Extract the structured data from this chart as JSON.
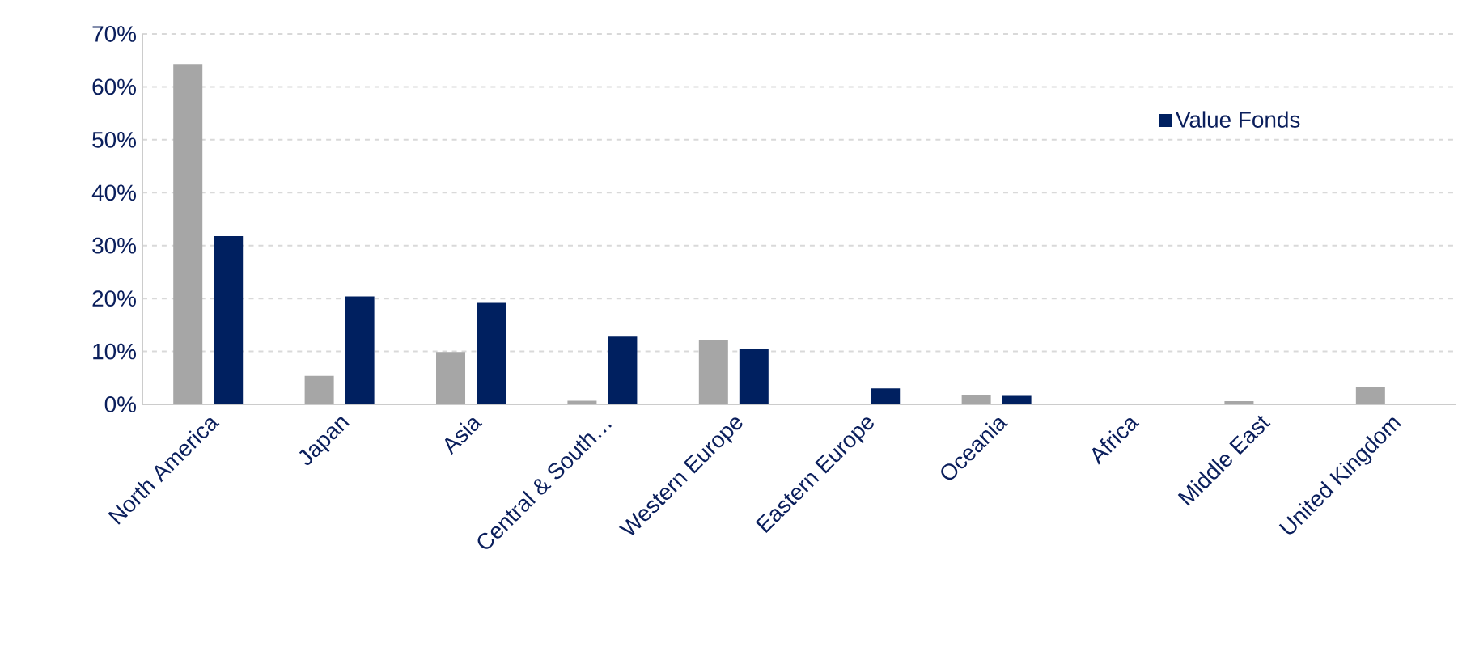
{
  "chart_data": {
    "type": "bar",
    "categories": [
      "North America",
      "Japan",
      "Asia",
      "Central & South…",
      "Western Europe",
      "Eastern Europe",
      "Oceania",
      "Africa",
      "Middle East",
      "United Kingdom"
    ],
    "series": [
      {
        "color": "#a6a6a6",
        "values": [
          64.3,
          5.4,
          9.9,
          0.7,
          12.1,
          0,
          1.8,
          null,
          0.6,
          3.2
        ]
      },
      {
        "name": "Value Fonds",
        "color": "#002060",
        "values": [
          31.8,
          20.4,
          19.2,
          12.8,
          10.4,
          3.0,
          1.6,
          0,
          0,
          0
        ]
      }
    ],
    "ylim": [
      0,
      70
    ],
    "yticks": [
      {
        "value": 0,
        "label": "0%"
      },
      {
        "value": 10,
        "label": "10%"
      },
      {
        "value": 20,
        "label": "20%"
      },
      {
        "value": 30,
        "label": "30%"
      },
      {
        "value": 40,
        "label": "40%"
      },
      {
        "value": 50,
        "label": "50%"
      },
      {
        "value": 60,
        "label": "60%"
      },
      {
        "value": 70,
        "label": "70%"
      }
    ],
    "grid": "y",
    "legend": "right"
  }
}
